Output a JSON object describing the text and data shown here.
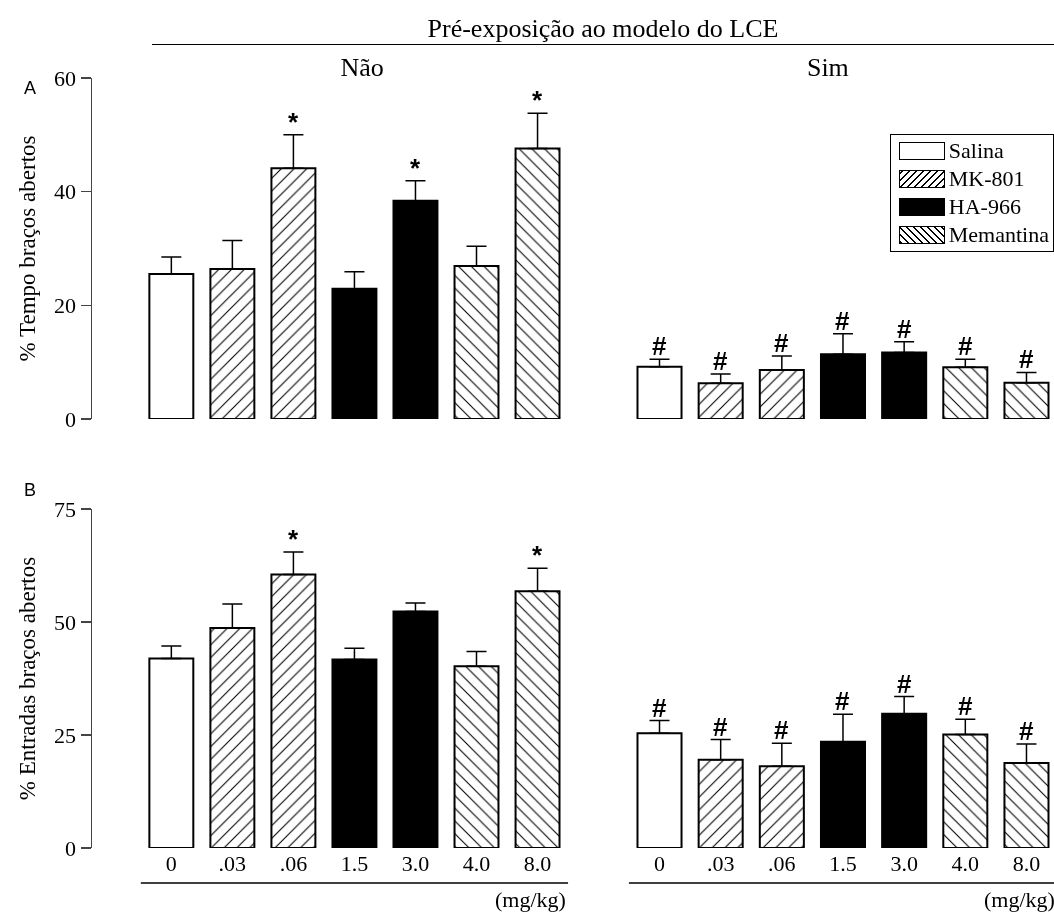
{
  "chart_data": [
    {
      "type": "bar",
      "title": "Não",
      "ylabel": "% Tempo braços abertos",
      "categories": [
        "0",
        ".03",
        ".06",
        "1.5",
        "3.0",
        "4.0",
        "8.0"
      ],
      "ylim": [
        0,
        60
      ],
      "yticks": [
        0,
        20,
        40,
        60
      ],
      "tick_labels": "y",
      "grid": false,
      "legend": false,
      "series": [
        {
          "color": "#ffffff",
          "values": [
            25.5,
            null,
            null,
            null,
            null,
            null,
            null
          ],
          "errors": [
            [
              25.5,
              28.5
            ],
            null,
            null,
            null,
            null,
            null,
            null
          ]
        },
        {
          "color": "#000000",
          "values": [
            null,
            26.4,
            44.1,
            null,
            null,
            null,
            null
          ],
          "errors": [
            null,
            [
              26.4,
              31.4
            ],
            [
              44.1,
              50.0
            ],
            null,
            null,
            null,
            null
          ]
        },
        {
          "color": "#000000",
          "values": [
            null,
            null,
            null,
            22.9,
            38.4,
            null,
            null
          ],
          "errors": [
            null,
            null,
            null,
            [
              22.9,
              25.9
            ],
            [
              38.4,
              41.9
            ],
            null,
            null
          ]
        },
        {
          "color": "#000000",
          "values": [
            null,
            null,
            null,
            null,
            null,
            26.9,
            47.6
          ],
          "errors": [
            null,
            null,
            null,
            null,
            null,
            [
              26.9,
              30.4
            ],
            [
              47.6,
              53.8
            ]
          ]
        }
      ],
      "annotations": [
        "A",
        "Pré-exposição ao modelo do LCE",
        {
          "text": "*",
          "x": ".06",
          "y": 50.0
        },
        {
          "text": "*",
          "x": "3.0",
          "y": 41.9
        },
        {
          "text": "*",
          "x": "8.0",
          "y": 53.8
        }
      ]
    },
    {
      "type": "bar",
      "title": "Sim",
      "categories": [
        "0",
        ".03",
        ".06",
        "1.5",
        "3.0",
        "4.0",
        "8.0"
      ],
      "ylim": [
        0,
        60
      ],
      "tick_labels": false,
      "grid": false,
      "legend": "top right",
      "series": [
        {
          "name": "Salina",
          "color": "#ffffff",
          "values": [
            9.2,
            null,
            null,
            null,
            null,
            null,
            null
          ],
          "errors": [
            [
              9.2,
              10.5
            ],
            null,
            null,
            null,
            null,
            null,
            null
          ]
        },
        {
          "name": "MK-801",
          "color": "#000000",
          "values": [
            null,
            6.3,
            8.6,
            null,
            null,
            null,
            null
          ],
          "errors": [
            null,
            [
              6.3,
              7.9
            ],
            [
              8.6,
              11.1
            ],
            null,
            null,
            null,
            null
          ]
        },
        {
          "name": "HA-966",
          "color": "#000000",
          "values": [
            null,
            null,
            null,
            11.4,
            11.7,
            null,
            null
          ],
          "errors": [
            null,
            null,
            null,
            [
              11.4,
              15.0
            ],
            [
              11.7,
              13.6
            ],
            null,
            null
          ]
        },
        {
          "name": "Memantina",
          "color": "#000000",
          "values": [
            null,
            null,
            null,
            null,
            null,
            9.1,
            6.4
          ],
          "errors": [
            null,
            null,
            null,
            null,
            null,
            [
              9.1,
              10.5
            ],
            [
              6.4,
              8.2
            ]
          ]
        }
      ],
      "annotations": [
        {
          "text": "#",
          "x": "0",
          "y": 10.5
        },
        {
          "text": "#",
          "x": ".03",
          "y": 7.9
        },
        {
          "text": "#",
          "x": ".06",
          "y": 11.1
        },
        {
          "text": "#",
          "x": "1.5",
          "y": 15.0
        },
        {
          "text": "#",
          "x": "3.0",
          "y": 13.6
        },
        {
          "text": "#",
          "x": "4.0",
          "y": 10.5
        },
        {
          "text": "#",
          "x": "8.0",
          "y": 8.2
        }
      ]
    },
    {
      "type": "bar",
      "ylabel": "% Entradas braços abertos",
      "xlabel": "(mg/kg)",
      "categories": [
        "0",
        ".03",
        ".06",
        "1.5",
        "3.0",
        "4.0",
        "8.0"
      ],
      "ylim": [
        0,
        75
      ],
      "yticks": [
        0,
        25,
        50,
        75
      ],
      "grid": false,
      "legend": false,
      "series": [
        {
          "color": "#ffffff",
          "values": [
            41.9,
            null,
            null,
            null,
            null,
            null,
            null
          ],
          "errors": [
            [
              41.9,
              44.7
            ],
            null,
            null,
            null,
            null,
            null,
            null
          ]
        },
        {
          "color": "#000000",
          "values": [
            null,
            48.7,
            60.5,
            null,
            null,
            null,
            null
          ],
          "errors": [
            null,
            [
              48.7,
              54.0
            ],
            [
              60.5,
              65.5
            ],
            null,
            null,
            null,
            null
          ]
        },
        {
          "color": "#000000",
          "values": [
            null,
            null,
            null,
            41.7,
            52.3,
            null,
            null
          ],
          "errors": [
            null,
            null,
            null,
            [
              41.7,
              44.2
            ],
            [
              52.3,
              54.2
            ],
            null,
            null
          ]
        },
        {
          "color": "#000000",
          "values": [
            null,
            null,
            null,
            null,
            null,
            40.2,
            56.8
          ],
          "errors": [
            null,
            null,
            null,
            null,
            null,
            [
              40.2,
              43.5
            ],
            [
              56.8,
              61.9
            ]
          ]
        }
      ],
      "annotations": [
        "B",
        {
          "text": "*",
          "x": ".06",
          "y": 65.5
        },
        {
          "text": "*",
          "x": "8.0",
          "y": 61.9
        }
      ]
    },
    {
      "type": "bar",
      "xlabel": "(mg/kg)",
      "categories": [
        "0",
        ".03",
        ".06",
        "1.5",
        "3.0",
        "4.0",
        "8.0"
      ],
      "ylim": [
        0,
        75
      ],
      "tick_labels": "x",
      "grid": false,
      "legend": false,
      "series": [
        {
          "color": "#ffffff",
          "values": [
            25.4,
            null,
            null,
            null,
            null,
            null,
            null
          ],
          "errors": [
            [
              25.4,
              28.2
            ],
            null,
            null,
            null,
            null,
            null,
            null
          ]
        },
        {
          "color": "#000000",
          "values": [
            null,
            19.5,
            18.1,
            null,
            null,
            null,
            null
          ],
          "errors": [
            null,
            [
              19.5,
              24.0
            ],
            [
              18.1,
              23.2
            ],
            null,
            null,
            null,
            null
          ]
        },
        {
          "color": "#000000",
          "values": [
            null,
            null,
            null,
            23.5,
            29.7,
            null,
            null
          ],
          "errors": [
            null,
            null,
            null,
            [
              23.5,
              29.6
            ],
            [
              29.7,
              33.5
            ],
            null,
            null
          ]
        },
        {
          "color": "#000000",
          "values": [
            null,
            null,
            null,
            null,
            null,
            25.1,
            18.8
          ],
          "errors": [
            null,
            null,
            null,
            null,
            null,
            [
              25.1,
              28.5
            ],
            [
              18.8,
              23.0
            ]
          ]
        }
      ],
      "annotations": [
        {
          "text": "#",
          "x": "0",
          "y": 28.2
        },
        {
          "text": "#",
          "x": ".03",
          "y": 24.0
        },
        {
          "text": "#",
          "x": ".06",
          "y": 23.2
        },
        {
          "text": "#",
          "x": "1.5",
          "y": 29.6
        },
        {
          "text": "#",
          "x": "3.0",
          "y": 33.5
        },
        {
          "text": "#",
          "x": "4.0",
          "y": 28.5
        },
        {
          "text": "#",
          "x": "8.0",
          "y": 23.0
        }
      ]
    }
  ]
}
